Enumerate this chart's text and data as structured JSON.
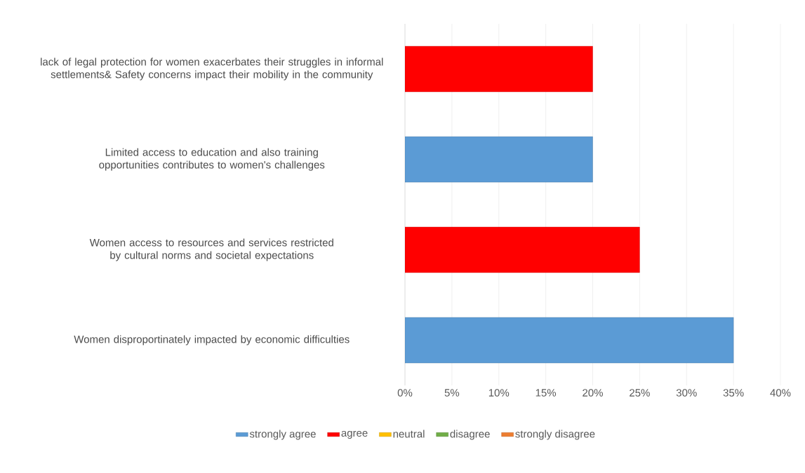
{
  "chart_data": {
    "type": "bar",
    "orientation": "horizontal",
    "categories": [
      "lack of legal protection for women exacerbates their struggles in informal settlements& Safety concerns impact their mobility in the community",
      "Limited access to education and also training opportunities contributes to women's challenges",
      "Women access to resources and services restricted by cultural norms and societal expectations",
      "Women disproportinately impacted by economic difficulties"
    ],
    "series": [
      {
        "name": "strongly agree",
        "color": "#5b9bd5",
        "values": [
          null,
          20,
          null,
          35
        ]
      },
      {
        "name": "agree",
        "color": "#ff0000",
        "values": [
          20,
          null,
          25,
          null
        ]
      },
      {
        "name": "neutral",
        "color": "#ffc000",
        "values": [
          null,
          null,
          null,
          null
        ]
      },
      {
        "name": "disagree",
        "color": "#70ad47",
        "values": [
          null,
          null,
          null,
          null
        ]
      },
      {
        "name": "strongly disagree",
        "color": "#ed7d31",
        "values": [
          null,
          null,
          null,
          null
        ]
      }
    ],
    "xlim": [
      0,
      40
    ],
    "xticks": [
      {
        "value": 0,
        "label": "0%"
      },
      {
        "value": 5,
        "label": "5%"
      },
      {
        "value": 10,
        "label": "10%"
      },
      {
        "value": 15,
        "label": "15%"
      },
      {
        "value": 20,
        "label": "20%"
      },
      {
        "value": 25,
        "label": "25%"
      },
      {
        "value": 30,
        "label": "30%"
      },
      {
        "value": 35,
        "label": "35%"
      },
      {
        "value": 40,
        "label": "40%"
      }
    ],
    "grid": "x",
    "legend": "bottom"
  }
}
